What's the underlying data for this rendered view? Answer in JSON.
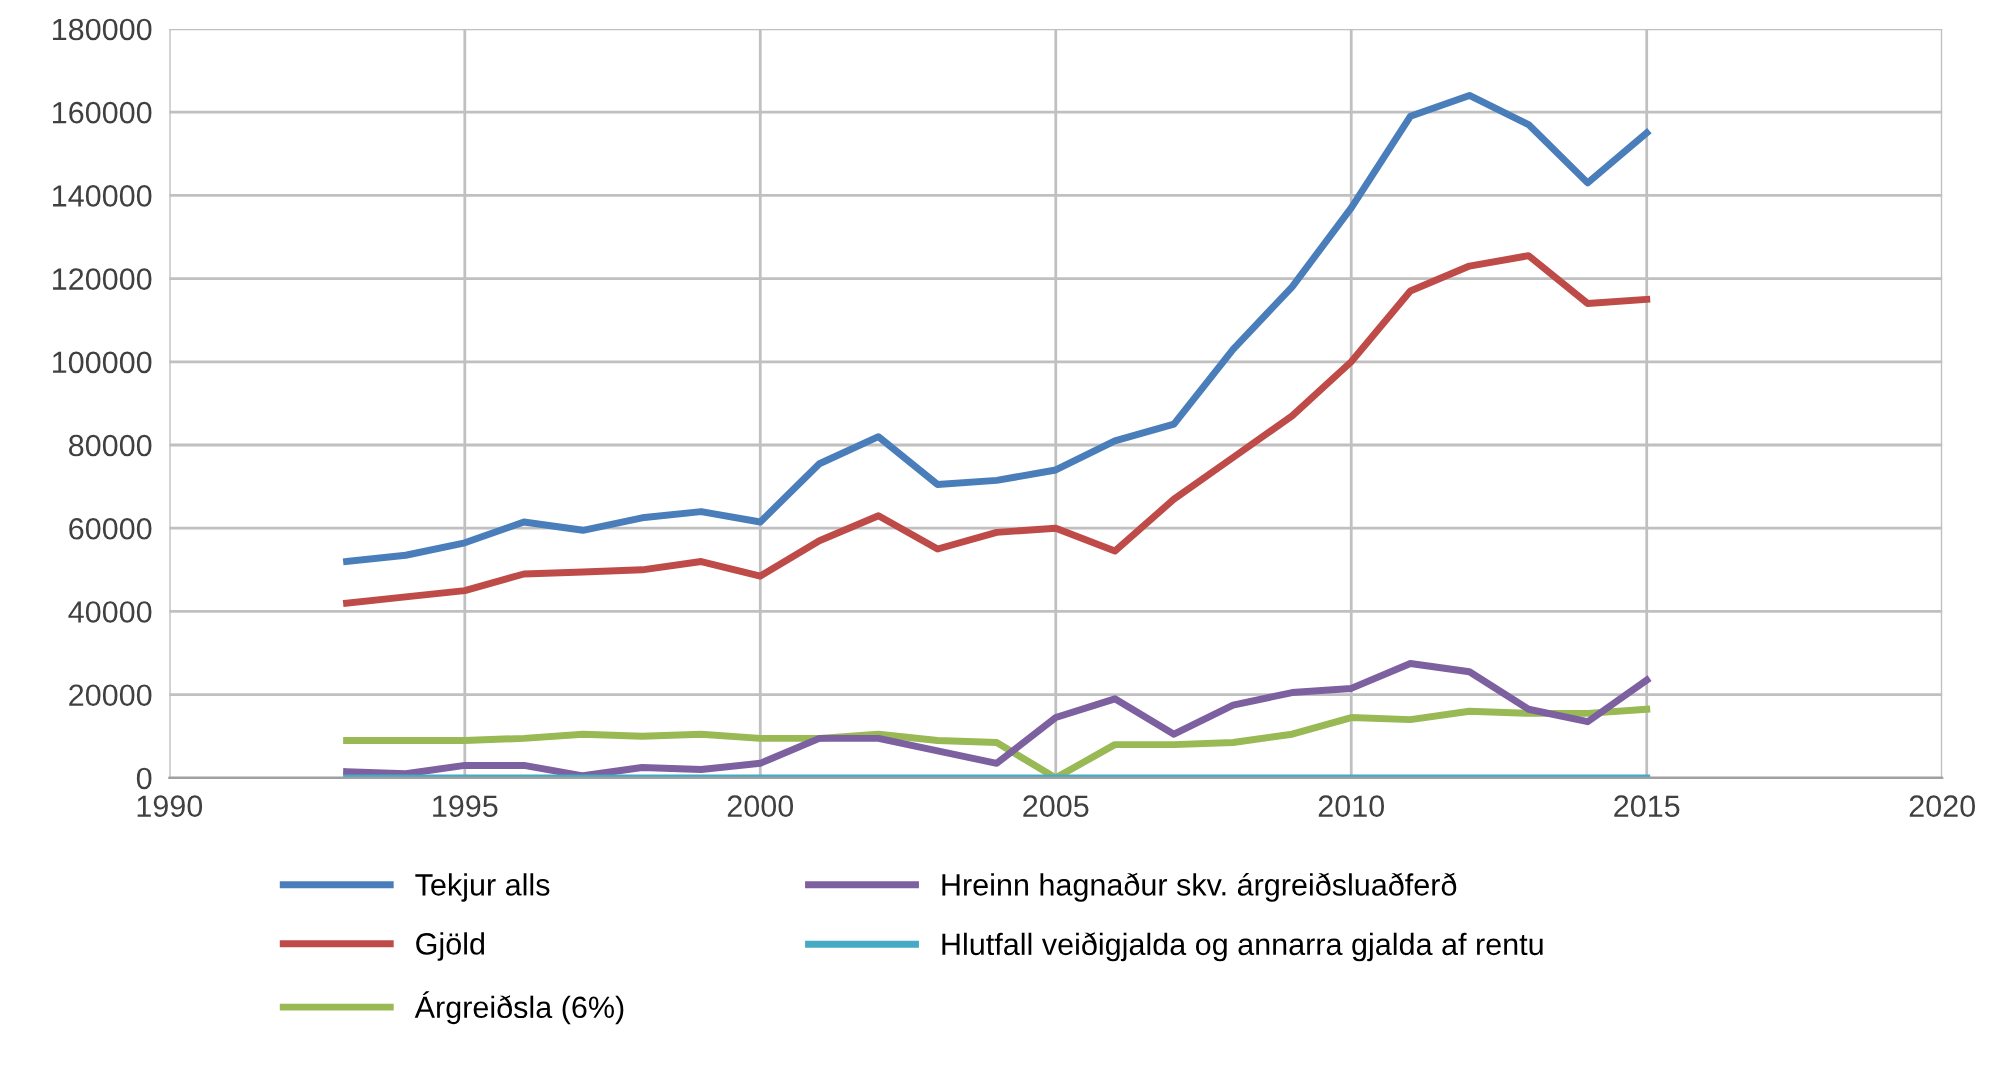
{
  "chart_data": {
    "type": "line",
    "x": [
      1993,
      1994,
      1995,
      1996,
      1997,
      1998,
      1999,
      2000,
      2001,
      2002,
      2003,
      2004,
      2005,
      2006,
      2007,
      2008,
      2009,
      2010,
      2011,
      2012,
      2013,
      2014,
      2015
    ],
    "series": [
      {
        "name": "Tekjur alls",
        "color": "#4a7ebb",
        "values": [
          52000,
          53500,
          56500,
          61500,
          59500,
          62500,
          64000,
          61500,
          75500,
          82000,
          70500,
          71500,
          74000,
          81000,
          85000,
          103000,
          118000,
          137000,
          159000,
          164000,
          157000,
          143000,
          155000
        ]
      },
      {
        "name": "Gjöld",
        "color": "#be4b48",
        "values": [
          42000,
          43500,
          45000,
          49000,
          49500,
          50000,
          52000,
          48500,
          57000,
          63000,
          55000,
          59000,
          60000,
          54500,
          67000,
          77000,
          87000,
          100000,
          117000,
          123000,
          125500,
          114000,
          115000
        ]
      },
      {
        "name": "Árgreiðsla (6%)",
        "color": "#98b954",
        "values": [
          9000,
          9000,
          9000,
          9500,
          10500,
          10000,
          10500,
          9500,
          9500,
          10500,
          9000,
          8500,
          0,
          8000,
          8000,
          8500,
          10500,
          14500,
          14000,
          16000,
          15500,
          15500,
          16500
        ]
      },
      {
        "name": "Hreinn hagnaður skv. árgreiðsluaðferð",
        "color": "#7d60a0",
        "values": [
          1500,
          1000,
          3000,
          3000,
          500,
          2500,
          2000,
          3500,
          9500,
          9500,
          6500,
          3500,
          14500,
          19000,
          10500,
          17500,
          20500,
          21500,
          27500,
          25500,
          16500,
          13500,
          23500
        ]
      },
      {
        "name": "Hlutfall veiðigjalda og annarra gjalda af rentu",
        "color": "#46aac5",
        "values": [
          0,
          0,
          0,
          0,
          0,
          0,
          0,
          0,
          0,
          0,
          0,
          0,
          0,
          0,
          0,
          0,
          0,
          0,
          0,
          0,
          0,
          0,
          0
        ]
      }
    ],
    "xlim": [
      1990,
      2020
    ],
    "xticks": [
      1990,
      1995,
      2000,
      2005,
      2010,
      2015,
      2020
    ],
    "ylim": [
      0,
      180000
    ],
    "yticks": [
      0,
      20000,
      40000,
      60000,
      80000,
      100000,
      120000,
      140000,
      160000,
      180000
    ],
    "grid": true,
    "legend": "bottom",
    "marker": "none",
    "line_style": "solid"
  }
}
